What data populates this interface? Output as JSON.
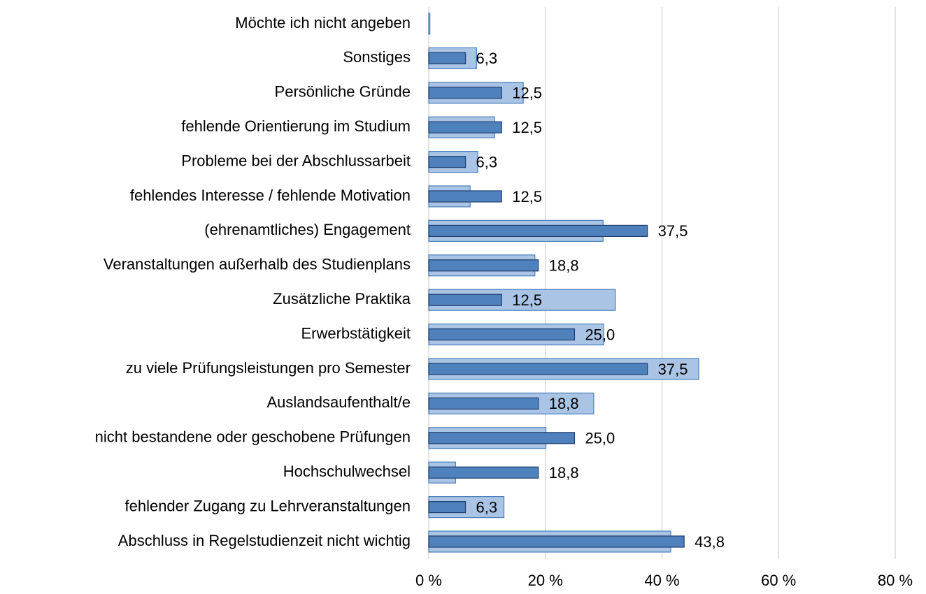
{
  "chart_data": {
    "type": "bar",
    "orientation": "horizontal",
    "categories": [
      "Möchte ich nicht angeben",
      "Sonstiges",
      "Persönliche Gründe",
      "fehlende Orientierung im Studium",
      "Probleme bei der Abschlussarbeit",
      "fehlendes Interesse / fehlende Motivation",
      "(ehrenamtliches) Engagement",
      "Veranstaltungen außerhalb des Studienplans",
      "Zusätzliche Praktika",
      "Erwerbstätigkeit",
      "zu viele Prüfungsleistungen pro Semester",
      "Auslandsaufenthalt/e",
      "nicht bestandene oder geschobene Prüfungen",
      "Hochschulwechsel",
      "fehlender Zugang zu Lehrveranstaltungen",
      "Abschluss in  Regelstudienzeit nicht wichtig"
    ],
    "series": [
      {
        "color": "#a9c4e4",
        "values": [
          0.2,
          8.2,
          16.2,
          11.3,
          8.4,
          7.1,
          29.9,
          18.2,
          32.0,
          30.0,
          46.3,
          28.3,
          20.1,
          4.6,
          12.9,
          41.5
        ]
      },
      {
        "color": "#4f81bd",
        "values": [
          0,
          6.3,
          12.5,
          12.5,
          6.3,
          12.5,
          37.5,
          18.8,
          12.5,
          25.0,
          37.5,
          18.8,
          25.0,
          18.8,
          6.3,
          43.8
        ],
        "value_labels": [
          null,
          "6,3",
          "12,5",
          "12,5",
          "6,3",
          "12,5",
          "37,5",
          "18,8",
          "12,5",
          "25,0",
          "37,5",
          "18,8",
          "25,0",
          "18,8",
          "6,3",
          "43,8"
        ]
      }
    ],
    "xlim": [
      0,
      80
    ],
    "xticks": [
      {
        "value": 0,
        "label": "0 %"
      },
      {
        "value": 20,
        "label": "20 %"
      },
      {
        "value": 40,
        "label": "40 %"
      },
      {
        "value": 60,
        "label": "60 %"
      },
      {
        "value": 80,
        "label": "80 %"
      }
    ],
    "grid": true
  }
}
